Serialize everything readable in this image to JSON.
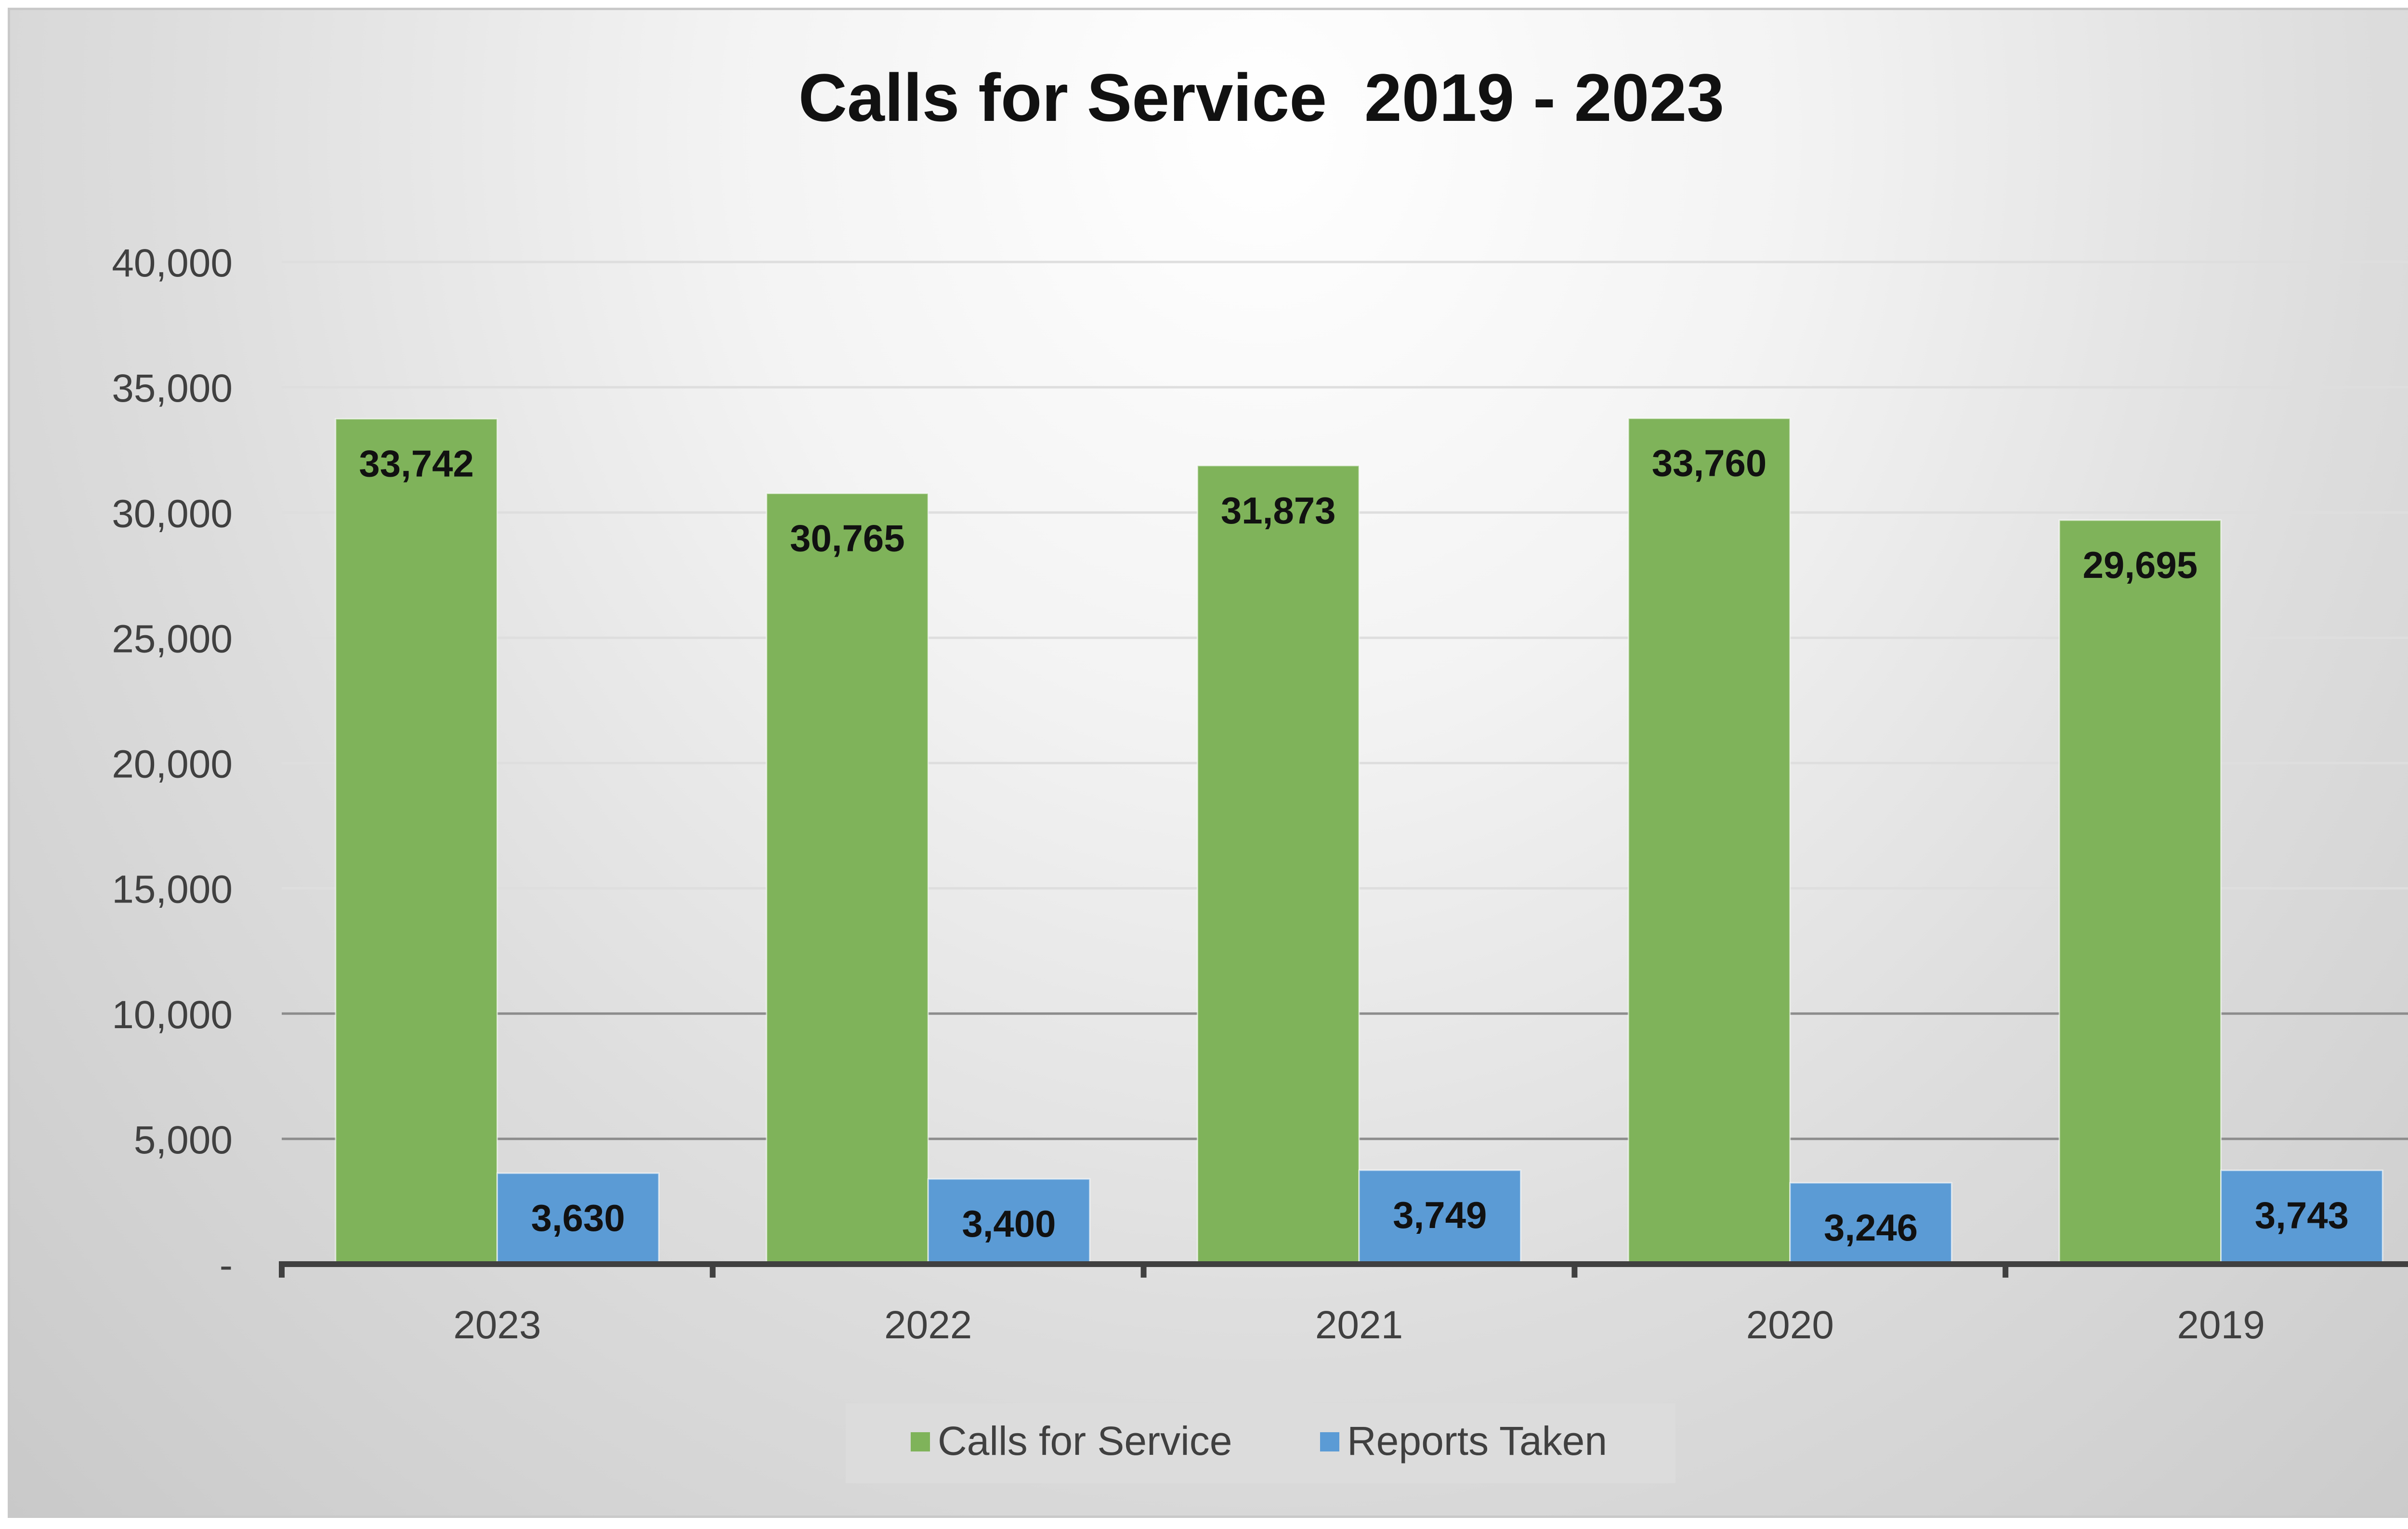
{
  "chart_data": {
    "type": "bar",
    "title": "Calls for Service  2019 - 2023",
    "categories": [
      "2023",
      "2022",
      "2021",
      "2020",
      "2019"
    ],
    "series": [
      {
        "name": "Calls for Service",
        "values": [
          33742,
          30765,
          31873,
          33760,
          29695
        ],
        "labels": [
          "33,742",
          "30,765",
          "31,873",
          "33,760",
          "29,695"
        ]
      },
      {
        "name": "Reports Taken",
        "values": [
          3630,
          3400,
          3749,
          3246,
          3743
        ],
        "labels": [
          "3,630",
          "3,400",
          "3,749",
          "3,246",
          "3,743"
        ]
      }
    ],
    "ylim": [
      0,
      40000
    ],
    "yticks": [
      {
        "value": 0,
        "label": "-"
      },
      {
        "value": 5000,
        "label": "5,000"
      },
      {
        "value": 10000,
        "label": "10,000"
      },
      {
        "value": 15000,
        "label": "15,000"
      },
      {
        "value": 20000,
        "label": "20,000"
      },
      {
        "value": 25000,
        "label": "25,000"
      },
      {
        "value": 30000,
        "label": "30,000"
      },
      {
        "value": 35000,
        "label": "35,000"
      },
      {
        "value": 40000,
        "label": "40,000"
      }
    ],
    "xlabel": "",
    "ylabel": "",
    "grid": true,
    "legend_position": "bottom",
    "colors": {
      "Calls for Service": "#7fb35a",
      "Reports Taken": "#5b9bd5"
    }
  }
}
